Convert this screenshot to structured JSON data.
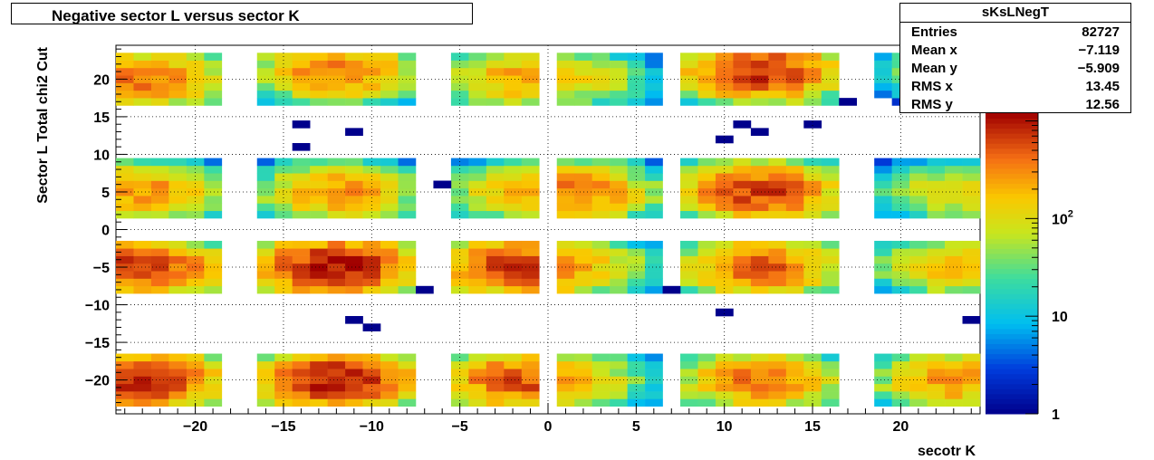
{
  "chart_data": {
    "type": "heatmap",
    "title": "Negative sector L versus sector K",
    "xlabel": "secotr K",
    "ylabel": "Sector L  Total chi2 Cut",
    "xlim": [
      -24.5,
      24.5
    ],
    "ylim": [
      -24.5,
      24.5
    ],
    "x_ticks": [
      -20,
      -15,
      -10,
      -5,
      0,
      5,
      10,
      15,
      20
    ],
    "x_tick_labels": [
      "−20",
      "−15",
      "−10",
      "−5",
      "0",
      "5",
      "10",
      "15",
      "20"
    ],
    "y_ticks": [
      -20,
      -15,
      -10,
      -5,
      0,
      5,
      10,
      15,
      20
    ],
    "y_tick_labels": [
      "−20",
      "−15",
      "−10",
      "−5",
      "0",
      "5",
      "10",
      "15",
      "20"
    ],
    "grid": true,
    "z_scale": "log",
    "zlim": [
      1,
      1200
    ],
    "colorbar_ticks": [
      {
        "value": 1,
        "label": "1"
      },
      {
        "value": 10,
        "label": "10"
      },
      {
        "value": 100,
        "label": "10",
        "sup": "2"
      }
    ],
    "clusters": [
      {
        "k": -12,
        "l": -20,
        "peak": 1000
      },
      {
        "k": -12,
        "l": -5,
        "peak": 1100
      },
      {
        "k": -12,
        "l": 5,
        "peak": 300
      },
      {
        "k": -12,
        "l": 21,
        "peak": 420
      },
      {
        "k": -23,
        "l": -20,
        "peak": 850
      },
      {
        "k": -23,
        "l": -5,
        "peak": 750
      },
      {
        "k": -23,
        "l": 5,
        "peak": 320
      },
      {
        "k": -23,
        "l": 20,
        "peak": 450
      },
      {
        "k": -1.5,
        "l": -20,
        "peak": 600
      },
      {
        "k": -1.5,
        "l": -5,
        "peak": 750
      },
      {
        "k": -1.5,
        "l": 5,
        "peak": 180
      },
      {
        "k": -1.5,
        "l": 20,
        "peak": 250
      },
      {
        "k": 1.5,
        "l": -20,
        "peak": 150
      },
      {
        "k": 1.5,
        "l": -5,
        "peak": 200
      },
      {
        "k": 1.5,
        "l": 5,
        "peak": 400
      },
      {
        "k": 1.5,
        "l": 20,
        "peak": 120
      },
      {
        "k": 12,
        "l": -20,
        "peak": 400
      },
      {
        "k": 12,
        "l": -5,
        "peak": 500
      },
      {
        "k": 12,
        "l": 5,
        "peak": 700
      },
      {
        "k": 12,
        "l": 21,
        "peak": 800
      },
      {
        "k": 23,
        "l": -20,
        "peak": 300
      },
      {
        "k": 23,
        "l": -5,
        "peak": 200
      },
      {
        "k": 23,
        "l": 5,
        "peak": 120
      },
      {
        "k": 23,
        "l": 21,
        "peak": 80
      }
    ],
    "sparse_bins": [
      {
        "k": -14,
        "l": 14
      },
      {
        "k": -14,
        "l": 11
      },
      {
        "k": -11,
        "l": 13
      },
      {
        "k": -11,
        "l": -12
      },
      {
        "k": -10,
        "l": -13
      },
      {
        "k": 11,
        "l": 14
      },
      {
        "k": 12,
        "l": 13
      },
      {
        "k": 15,
        "l": 14
      },
      {
        "k": 10,
        "l": 12
      },
      {
        "k": 10,
        "l": -11
      },
      {
        "k": 24,
        "l": -12
      },
      {
        "k": -7,
        "l": -8
      },
      {
        "k": 7,
        "l": -8
      },
      {
        "k": -6,
        "l": 6
      },
      {
        "k": 17,
        "l": 17
      }
    ]
  },
  "stats": {
    "name": "sKsLNegT",
    "rows": [
      {
        "label": "Entries",
        "value": "82727"
      },
      {
        "label": "Mean x",
        "value": "−7.119"
      },
      {
        "label": "Mean y",
        "value": "−5.909"
      },
      {
        "label": "RMS x",
        "value": "13.45"
      },
      {
        "label": "RMS y",
        "value": "12.56"
      }
    ]
  }
}
